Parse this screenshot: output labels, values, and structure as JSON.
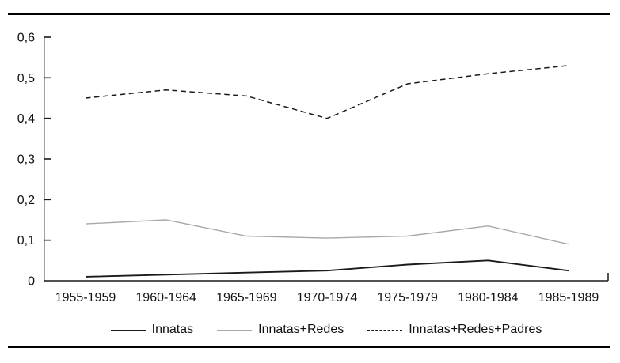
{
  "chart_data": {
    "type": "line",
    "title": "",
    "xlabel": "",
    "ylabel": "",
    "grid": false,
    "legend_position": "bottom",
    "categories": [
      "1955-1959",
      "1960-1964",
      "1965-1969",
      "1970-1974",
      "1975-1979",
      "1980-1984",
      "1985-1989"
    ],
    "series": [
      {
        "name": "Innatas",
        "values": [
          0.01,
          0.015,
          0.02,
          0.025,
          0.04,
          0.05,
          0.025
        ],
        "color": "#1a1a1a",
        "dash": "solid",
        "line_width": 1.9
      },
      {
        "name": "Innatas+Redes",
        "values": [
          0.14,
          0.15,
          0.11,
          0.105,
          0.11,
          0.135,
          0.09
        ],
        "color": "#a8a8a8",
        "dash": "solid",
        "line_width": 1.4
      },
      {
        "name": "Innatas+Redes+Padres",
        "values": [
          0.45,
          0.47,
          0.455,
          0.4,
          0.485,
          0.51,
          0.53
        ],
        "color": "#1a1a1a",
        "dash": "dashed",
        "line_width": 1.5
      }
    ],
    "y_axis": {
      "min": 0,
      "max": 0.6,
      "step": 0.1,
      "tick_labels": [
        "0",
        "0,1",
        "0,2",
        "0,3",
        "0,4",
        "0,5",
        "0,6"
      ],
      "decimal_separator": ","
    },
    "ylim": [
      0,
      0.6
    ],
    "colors": {
      "axis_line": "#8c8c8c",
      "tick_and_baseline": "#1a1a1a",
      "text": "#111111",
      "rule": "#000000"
    }
  }
}
